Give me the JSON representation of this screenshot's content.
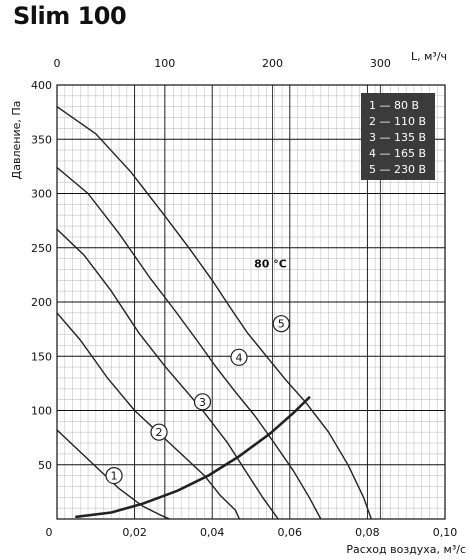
{
  "title": "Slim 100",
  "chart_data": {
    "type": "line",
    "xlabel": "Расход воздуха, м³/с",
    "ylabel": "Давление, Па",
    "x2label": "L, м³/ч",
    "xlim": [
      0,
      0.1
    ],
    "ylim": [
      0,
      400
    ],
    "x2lim": [
      0,
      360
    ],
    "x_ticks": [
      "0",
      "0,02",
      "0,04",
      "0,06",
      "0,08",
      "0,10"
    ],
    "y_ticks": [
      "0",
      "50",
      "100",
      "150",
      "200",
      "250",
      "300",
      "350",
      "400"
    ],
    "x2_ticks": [
      "0",
      "100",
      "200",
      "300"
    ],
    "grid": true,
    "legend_position": "top-right",
    "legend": [
      "1 — 80 В",
      "2 — 110 В",
      "3 — 135 В",
      "4 — 165 В",
      "5 — 230 В"
    ],
    "annotation": "80 °С",
    "series": [
      {
        "name": "1",
        "x": [
          0,
          0.008,
          0.016,
          0.022,
          0.027,
          0.029
        ],
        "y": [
          82,
          55,
          28,
          12,
          3,
          0
        ]
      },
      {
        "name": "2",
        "x": [
          0,
          0.006,
          0.013,
          0.02,
          0.026,
          0.032,
          0.038,
          0.042,
          0.046,
          0.047
        ],
        "y": [
          190,
          165,
          130,
          100,
          80,
          60,
          40,
          22,
          8,
          0
        ]
      },
      {
        "name": "3",
        "x": [
          0,
          0.007,
          0.014,
          0.021,
          0.028,
          0.034,
          0.038,
          0.044,
          0.049,
          0.053,
          0.057
        ],
        "y": [
          267,
          243,
          210,
          172,
          140,
          115,
          98,
          70,
          42,
          20,
          0
        ]
      },
      {
        "name": "4",
        "x": [
          0,
          0.008,
          0.016,
          0.024,
          0.03,
          0.036,
          0.041,
          0.046,
          0.051,
          0.056,
          0.061,
          0.065,
          0.068
        ],
        "y": [
          324,
          300,
          263,
          222,
          194,
          165,
          140,
          117,
          95,
          70,
          44,
          20,
          0
        ]
      },
      {
        "name": "5",
        "x": [
          0,
          0.01,
          0.019,
          0.027,
          0.034,
          0.04,
          0.045,
          0.049,
          0.054,
          0.059,
          0.064,
          0.07,
          0.075,
          0.079,
          0.081
        ],
        "y": [
          380,
          355,
          320,
          283,
          250,
          220,
          193,
          172,
          150,
          128,
          108,
          80,
          50,
          20,
          0
        ]
      },
      {
        "name": "",
        "x": [
          0.005,
          0.014,
          0.022,
          0.031,
          0.039,
          0.047,
          0.055,
          0.061,
          0.065
        ],
        "y": [
          2,
          6,
          14,
          26,
          40,
          58,
          79,
          98,
          112
        ]
      }
    ]
  }
}
